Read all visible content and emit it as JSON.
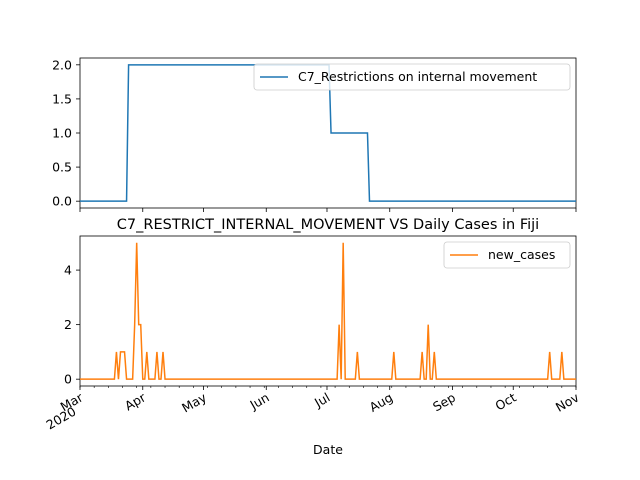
{
  "chart_data": [
    {
      "type": "line",
      "title": "",
      "xlabel": "",
      "ylabel": "",
      "xlim": [
        "2020-03-01",
        "2020-11-01"
      ],
      "ylim": [
        -0.1,
        2.1
      ],
      "yticks": [
        {
          "value": 0.0,
          "label": "0.0"
        },
        {
          "value": 0.5,
          "label": "0.5"
        },
        {
          "value": 1.0,
          "label": "1.0"
        },
        {
          "value": 1.5,
          "label": "1.5"
        },
        {
          "value": 2.0,
          "label": "2.0"
        }
      ],
      "legend_position": "upper-right",
      "series": [
        {
          "name": "C7_Restrictions on internal movement",
          "color": "#1f77b4",
          "points": [
            [
              "2020-03-01",
              0
            ],
            [
              "2020-03-24",
              0
            ],
            [
              "2020-03-25",
              2
            ],
            [
              "2020-07-02",
              2
            ],
            [
              "2020-07-03",
              1
            ],
            [
              "2020-07-21",
              1
            ],
            [
              "2020-07-22",
              0
            ],
            [
              "2020-11-01",
              0
            ]
          ]
        }
      ]
    },
    {
      "type": "line",
      "title": "C7_RESTRICT_INTERNAL_MOVEMENT VS Daily Cases in Fiji",
      "xlabel": "Date",
      "ylabel": "",
      "xlim": [
        "2020-03-01",
        "2020-11-01"
      ],
      "ylim": [
        -0.25,
        5.25
      ],
      "yticks": [
        {
          "value": 0,
          "label": "0"
        },
        {
          "value": 2,
          "label": "2"
        },
        {
          "value": 4,
          "label": "4"
        }
      ],
      "xticks": [
        {
          "date": "2020-03-01",
          "label": "Mar",
          "sublabel": "2020"
        },
        {
          "date": "2020-04-01",
          "label": "Apr"
        },
        {
          "date": "2020-05-01",
          "label": "May"
        },
        {
          "date": "2020-06-01",
          "label": "Jun"
        },
        {
          "date": "2020-07-01",
          "label": "Jul"
        },
        {
          "date": "2020-08-01",
          "label": "Aug"
        },
        {
          "date": "2020-09-01",
          "label": "Sep"
        },
        {
          "date": "2020-10-01",
          "label": "Oct"
        },
        {
          "date": "2020-11-01",
          "label": "Nov"
        }
      ],
      "legend_position": "upper-right",
      "series": [
        {
          "name": "new_cases",
          "color": "#ff7f0e",
          "points": [
            [
              "2020-03-19",
              1
            ],
            [
              "2020-03-21",
              1
            ],
            [
              "2020-03-22",
              1
            ],
            [
              "2020-03-23",
              1
            ],
            [
              "2020-03-28",
              2
            ],
            [
              "2020-03-29",
              5
            ],
            [
              "2020-03-30",
              2
            ],
            [
              "2020-03-31",
              2
            ],
            [
              "2020-04-03",
              1
            ],
            [
              "2020-04-08",
              1
            ],
            [
              "2020-04-11",
              1
            ],
            [
              "2020-07-07",
              2
            ],
            [
              "2020-07-09",
              5
            ],
            [
              "2020-07-16",
              1
            ],
            [
              "2020-08-03",
              1
            ],
            [
              "2020-08-17",
              1
            ],
            [
              "2020-08-20",
              2
            ],
            [
              "2020-08-23",
              1
            ],
            [
              "2020-10-19",
              1
            ],
            [
              "2020-10-25",
              1
            ]
          ],
          "default_value": 0
        }
      ]
    }
  ]
}
